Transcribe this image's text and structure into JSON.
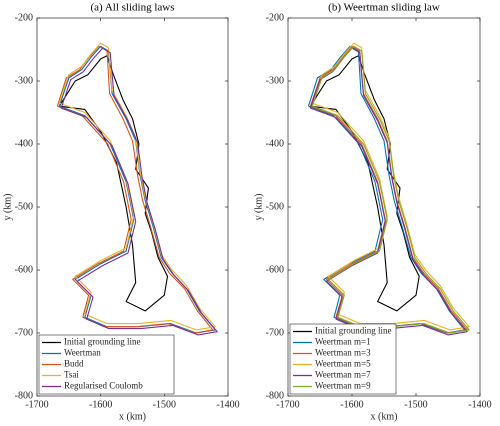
{
  "chart_data": [
    {
      "type": "line",
      "title": "(a) All sliding laws",
      "xlabel": "x (km)",
      "ylabel": "y (km)",
      "xlim": [
        -1700,
        -1400
      ],
      "ylim": [
        -800,
        -200
      ],
      "xticks": [
        -1700,
        -1600,
        -1500,
        -1400
      ],
      "yticks": [
        -800,
        -700,
        -600,
        -500,
        -400,
        -300,
        -200
      ],
      "legend": "lower left",
      "series": [
        {
          "name": "Initial grounding line",
          "color": "#000000",
          "x": [
            -1665,
            -1640,
            -1620,
            -1600,
            -1590,
            -1580,
            -1565,
            -1550,
            -1540,
            -1545,
            -1525,
            -1530,
            -1520,
            -1510,
            -1495,
            -1500,
            -1530,
            -1560,
            -1545,
            -1550,
            -1560,
            -1575,
            -1600,
            -1625,
            -1665
          ],
          "values": [
            -340,
            -300,
            -290,
            -265,
            -260,
            -290,
            -330,
            -360,
            -400,
            -440,
            -470,
            -510,
            -540,
            -580,
            -610,
            -640,
            -665,
            -650,
            -620,
            -560,
            -500,
            -430,
            -380,
            -345,
            -340
          ]
        },
        {
          "name": "Weertman",
          "color": "#0072BD",
          "x": [
            -1665,
            -1650,
            -1630,
            -1615,
            -1600,
            -1588,
            -1582,
            -1560,
            -1545,
            -1538,
            -1530,
            -1518,
            -1505,
            -1488,
            -1465,
            -1445,
            -1420,
            -1450,
            -1490,
            -1540,
            -1590,
            -1625,
            -1615,
            -1640,
            -1600,
            -1560,
            -1548,
            -1560,
            -1585,
            -1625,
            -1665
          ],
          "values": [
            -340,
            -295,
            -282,
            -262,
            -245,
            -252,
            -320,
            -360,
            -395,
            -450,
            -490,
            -530,
            -580,
            -605,
            -630,
            -665,
            -695,
            -700,
            -685,
            -690,
            -690,
            -675,
            -640,
            -615,
            -590,
            -570,
            -520,
            -460,
            -400,
            -355,
            -340
          ]
        },
        {
          "name": "Budd",
          "color": "#D95319",
          "x": [
            -1668,
            -1654,
            -1633,
            -1618,
            -1603,
            -1590,
            -1586,
            -1565,
            -1550,
            -1542,
            -1534,
            -1522,
            -1508,
            -1492,
            -1468,
            -1448,
            -1424,
            -1452,
            -1494,
            -1544,
            -1594,
            -1628,
            -1619,
            -1644,
            -1604,
            -1564,
            -1552,
            -1564,
            -1589,
            -1629,
            -1668
          ],
          "values": [
            -340,
            -295,
            -282,
            -262,
            -245,
            -252,
            -320,
            -360,
            -395,
            -450,
            -490,
            -530,
            -580,
            -605,
            -630,
            -665,
            -695,
            -700,
            -685,
            -690,
            -690,
            -675,
            -640,
            -615,
            -590,
            -570,
            -520,
            -460,
            -400,
            -355,
            -340
          ]
        },
        {
          "name": "Tsai",
          "color": "#EDB120",
          "x": [
            -1665,
            -1650,
            -1630,
            -1615,
            -1600,
            -1588,
            -1582,
            -1560,
            -1545,
            -1538,
            -1530,
            -1518,
            -1505,
            -1488,
            -1465,
            -1445,
            -1420,
            -1450,
            -1490,
            -1540,
            -1590,
            -1625,
            -1615,
            -1640,
            -1600,
            -1560,
            -1548,
            -1560,
            -1585,
            -1625,
            -1665
          ],
          "values": [
            -335,
            -290,
            -277,
            -257,
            -240,
            -247,
            -315,
            -355,
            -390,
            -445,
            -485,
            -525,
            -575,
            -600,
            -625,
            -660,
            -690,
            -695,
            -680,
            -685,
            -685,
            -670,
            -635,
            -610,
            -585,
            -565,
            -515,
            -455,
            -395,
            -350,
            -335
          ]
        },
        {
          "name": "Regularised Coulomb",
          "color": "#7E2F8E",
          "x": [
            -1662,
            -1647,
            -1627,
            -1612,
            -1597,
            -1585,
            -1579,
            -1557,
            -1542,
            -1535,
            -1527,
            -1515,
            -1502,
            -1485,
            -1462,
            -1442,
            -1417,
            -1447,
            -1487,
            -1537,
            -1587,
            -1622,
            -1612,
            -1637,
            -1597,
            -1557,
            -1545,
            -1557,
            -1582,
            -1622,
            -1662
          ],
          "values": [
            -343,
            -298,
            -285,
            -265,
            -248,
            -255,
            -323,
            -363,
            -398,
            -453,
            -493,
            -533,
            -583,
            -608,
            -633,
            -668,
            -698,
            -703,
            -688,
            -693,
            -693,
            -678,
            -643,
            -618,
            -593,
            -573,
            -523,
            -463,
            -403,
            -358,
            -343
          ]
        }
      ]
    },
    {
      "type": "line",
      "title": "(b) Weertman sliding law",
      "xlabel": "x (km)",
      "ylabel": "y (km)",
      "xlim": [
        -1700,
        -1400
      ],
      "ylim": [
        -800,
        -200
      ],
      "xticks": [
        -1700,
        -1600,
        -1500,
        -1400
      ],
      "yticks": [
        -800,
        -700,
        -600,
        -500,
        -400,
        -300,
        -200
      ],
      "legend": "lower left",
      "series": [
        {
          "name": "Initial grounding line",
          "color": "#000000",
          "x": [
            -1665,
            -1640,
            -1620,
            -1600,
            -1590,
            -1580,
            -1565,
            -1550,
            -1540,
            -1545,
            -1525,
            -1530,
            -1520,
            -1510,
            -1495,
            -1500,
            -1530,
            -1560,
            -1545,
            -1550,
            -1560,
            -1575,
            -1600,
            -1625,
            -1665
          ],
          "values": [
            -340,
            -300,
            -290,
            -265,
            -260,
            -290,
            -330,
            -360,
            -400,
            -440,
            -470,
            -510,
            -540,
            -580,
            -610,
            -640,
            -665,
            -650,
            -620,
            -560,
            -500,
            -430,
            -380,
            -345,
            -340
          ]
        },
        {
          "name": "Weertman m=1",
          "color": "#0072BD",
          "x": [
            -1668,
            -1654,
            -1633,
            -1618,
            -1603,
            -1590,
            -1586,
            -1565,
            -1550,
            -1542,
            -1534,
            -1522,
            -1508,
            -1492,
            -1468,
            -1448,
            -1424,
            -1452,
            -1494,
            -1544,
            -1594,
            -1628,
            -1619,
            -1644,
            -1604,
            -1564,
            -1552,
            -1564,
            -1589,
            -1629,
            -1668
          ],
          "values": [
            -340,
            -295,
            -282,
            -262,
            -245,
            -252,
            -320,
            -360,
            -395,
            -450,
            -490,
            -530,
            -580,
            -605,
            -630,
            -665,
            -695,
            -700,
            -685,
            -690,
            -690,
            -675,
            -640,
            -615,
            -590,
            -570,
            -520,
            -460,
            -400,
            -355,
            -340
          ]
        },
        {
          "name": "Weertman m=3",
          "color": "#D95319",
          "x": [
            -1665,
            -1650,
            -1630,
            -1615,
            -1600,
            -1588,
            -1582,
            -1560,
            -1545,
            -1538,
            -1530,
            -1518,
            -1505,
            -1488,
            -1465,
            -1445,
            -1420,
            -1450,
            -1490,
            -1540,
            -1590,
            -1625,
            -1615,
            -1640,
            -1600,
            -1560,
            -1548,
            -1560,
            -1585,
            -1625,
            -1665
          ],
          "values": [
            -340,
            -295,
            -282,
            -262,
            -245,
            -252,
            -320,
            -360,
            -395,
            -450,
            -490,
            -530,
            -580,
            -605,
            -630,
            -665,
            -695,
            -700,
            -685,
            -690,
            -690,
            -675,
            -640,
            -615,
            -590,
            -570,
            -520,
            -460,
            -400,
            -355,
            -340
          ]
        },
        {
          "name": "Weertman m=5",
          "color": "#EDB120",
          "x": [
            -1662,
            -1647,
            -1627,
            -1612,
            -1597,
            -1585,
            -1579,
            -1557,
            -1542,
            -1535,
            -1527,
            -1515,
            -1502,
            -1485,
            -1462,
            -1442,
            -1417,
            -1447,
            -1487,
            -1537,
            -1587,
            -1622,
            -1612,
            -1637,
            -1597,
            -1557,
            -1545,
            -1557,
            -1582,
            -1622,
            -1662
          ],
          "values": [
            -335,
            -290,
            -277,
            -257,
            -240,
            -247,
            -315,
            -355,
            -390,
            -445,
            -485,
            -525,
            -575,
            -600,
            -625,
            -660,
            -690,
            -695,
            -680,
            -685,
            -685,
            -670,
            -635,
            -610,
            -585,
            -565,
            -515,
            -455,
            -395,
            -350,
            -335
          ]
        },
        {
          "name": "Weertman m=7",
          "color": "#7E2F8E",
          "x": [
            -1665,
            -1650,
            -1630,
            -1615,
            -1600,
            -1588,
            -1582,
            -1560,
            -1545,
            -1538,
            -1530,
            -1518,
            -1505,
            -1488,
            -1465,
            -1445,
            -1420,
            -1450,
            -1490,
            -1540,
            -1590,
            -1625,
            -1615,
            -1640,
            -1600,
            -1560,
            -1548,
            -1560,
            -1585,
            -1625,
            -1665
          ],
          "values": [
            -343,
            -298,
            -285,
            -265,
            -248,
            -255,
            -323,
            -363,
            -398,
            -453,
            -493,
            -533,
            -583,
            -608,
            -633,
            -668,
            -698,
            -703,
            -688,
            -693,
            -693,
            -678,
            -643,
            -618,
            -593,
            -573,
            -523,
            -463,
            -403,
            -358,
            -343
          ]
        },
        {
          "name": "Weertman m=9",
          "color": "#77AC30",
          "x": [
            -1662,
            -1647,
            -1627,
            -1612,
            -1597,
            -1585,
            -1579,
            -1557,
            -1542,
            -1535,
            -1527,
            -1515,
            -1502,
            -1485,
            -1462,
            -1442,
            -1417,
            -1447,
            -1487,
            -1537,
            -1587,
            -1622,
            -1612,
            -1637,
            -1597,
            -1557,
            -1545,
            -1557,
            -1582,
            -1622,
            -1662
          ],
          "values": [
            -340,
            -295,
            -282,
            -262,
            -245,
            -252,
            -320,
            -360,
            -395,
            -450,
            -490,
            -530,
            -580,
            -605,
            -630,
            -665,
            -695,
            -700,
            -685,
            -690,
            -690,
            -675,
            -640,
            -615,
            -590,
            -570,
            -520,
            -460,
            -400,
            -355,
            -340
          ]
        }
      ]
    }
  ]
}
